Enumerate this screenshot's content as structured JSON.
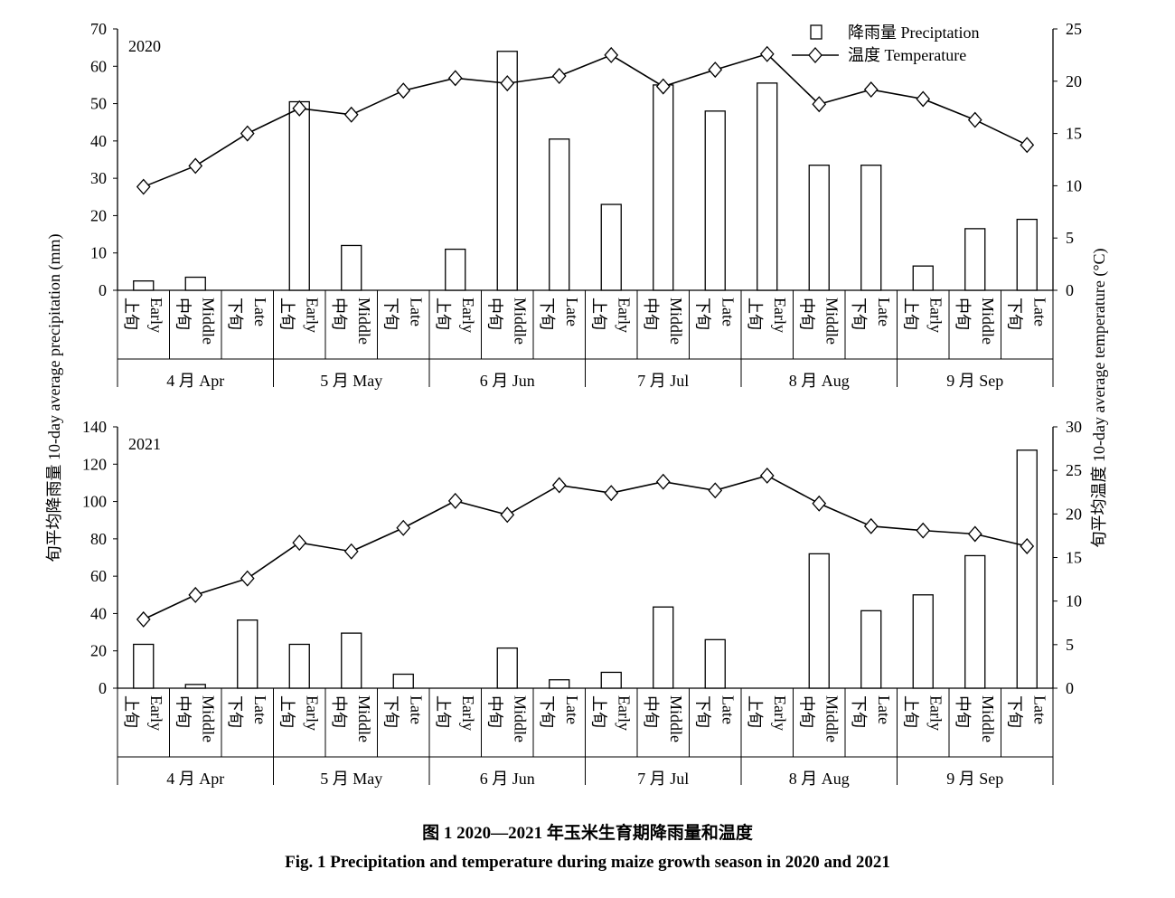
{
  "chart_data": [
    {
      "type": "bar+line",
      "panel_label": "2020",
      "categories_period": [
        {
          "cn": "上旬",
          "en": "Early"
        },
        {
          "cn": "中旬",
          "en": "Middle"
        },
        {
          "cn": "下旬",
          "en": "Late"
        }
      ],
      "months": [
        "4 月 Apr",
        "5 月 May",
        "6 月 Jun",
        "7 月 Jul",
        "8 月 Aug",
        "9 月 Sep"
      ],
      "precipitation": [
        2.5,
        3.5,
        0,
        50.5,
        12,
        0,
        11,
        64,
        40.5,
        23,
        55,
        48,
        55.5,
        33.5,
        33.5,
        6.5,
        16.5,
        19
      ],
      "temperature": [
        9.9,
        11.9,
        15.0,
        17.4,
        16.8,
        19.1,
        20.3,
        19.8,
        20.5,
        22.5,
        19.5,
        21.1,
        22.6,
        17.8,
        19.2,
        18.3,
        16.3,
        13.9
      ],
      "ylim_left": [
        0,
        70
      ],
      "yticks_left": [
        0,
        10,
        20,
        30,
        40,
        50,
        60,
        70
      ],
      "ylim_right": [
        0,
        25
      ],
      "yticks_right": [
        0,
        5,
        10,
        15,
        20,
        25
      ]
    },
    {
      "type": "bar+line",
      "panel_label": "2021",
      "categories_period": [
        {
          "cn": "上旬",
          "en": "Early"
        },
        {
          "cn": "中旬",
          "en": "Middle"
        },
        {
          "cn": "下旬",
          "en": "Late"
        }
      ],
      "months": [
        "4 月 Apr",
        "5 月 May",
        "6 月 Jun",
        "7 月 Jul",
        "8 月 Aug",
        "9 月 Sep"
      ],
      "precipitation": [
        23.5,
        2,
        36.5,
        23.5,
        29.5,
        7.5,
        0,
        21.5,
        4.5,
        8.5,
        43.5,
        26,
        0,
        72,
        41.5,
        50,
        71,
        127.5
      ],
      "temperature": [
        7.9,
        10.7,
        12.6,
        16.7,
        15.7,
        18.4,
        21.5,
        19.9,
        23.3,
        22.4,
        23.7,
        22.7,
        24.4,
        21.2,
        18.6,
        18.1,
        17.7,
        16.3
      ],
      "ylim_left": [
        0,
        140
      ],
      "yticks_left": [
        0,
        20,
        40,
        60,
        80,
        100,
        120,
        140
      ],
      "ylim_right": [
        0,
        30
      ],
      "yticks_right": [
        0,
        5,
        10,
        15,
        20,
        25,
        30
      ]
    }
  ],
  "legend": {
    "precipitation": "降雨量 Preciptation",
    "temperature": "温度 Temperature",
    "placement": "top-right"
  },
  "ylabel_left": "旬平均降雨量 10-day average precipitation (mm)",
  "ylabel_right": "旬平均温度 10-day average temperature (°C)",
  "caption_cn": "图 1   2020—2021 年玉米生育期降雨量和温度",
  "caption_en": "Fig. 1   Precipitation and temperature during maize growth season in 2020 and 2021"
}
